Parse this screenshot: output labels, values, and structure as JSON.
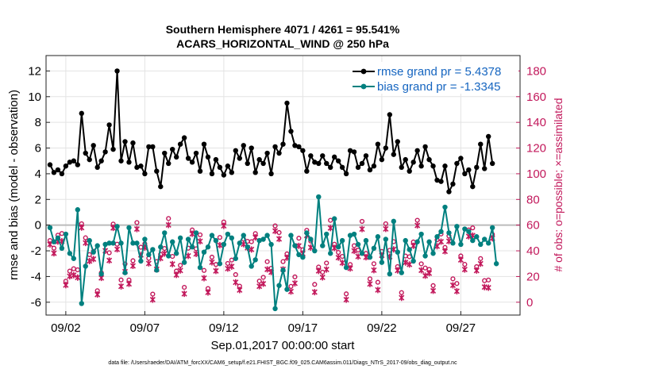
{
  "chart_data": {
    "type": "line",
    "title_line1": "Southern Hemisphere 4071 / 4261 = 95.541%",
    "title_line2": "ACARS_HORIZONTAL_WIND @ 250 hPa",
    "xlabel": "Sep.01,2017 00:00:00 start",
    "ylabel_left": "rmse and bias (model - observation)",
    "ylabel_right": "# of obs: o=possible; ×=assimilated",
    "footer": "data file: /Users/raeder/DAI/ATM_forcXX/CAM6_setup/f.e21.FHIST_BGC.f09_025.CAM6assim.011/Diags_NTrS_2017-09/obs_diag_output.nc",
    "x_range": [
      0.75,
      30.75
    ],
    "y_left_range": [
      -7,
      13.2
    ],
    "y_right_range": [
      -10,
      192
    ],
    "x_ticks": [
      {
        "pos": 2,
        "label": "09/02"
      },
      {
        "pos": 7,
        "label": "09/07"
      },
      {
        "pos": 12,
        "label": "09/12"
      },
      {
        "pos": 17,
        "label": "09/17"
      },
      {
        "pos": 22,
        "label": "09/22"
      },
      {
        "pos": 27,
        "label": "09/27"
      }
    ],
    "y_left_ticks": [
      -6,
      -4,
      -2,
      0,
      2,
      4,
      6,
      8,
      10,
      12
    ],
    "y_right_ticks": [
      0,
      20,
      40,
      60,
      80,
      100,
      120,
      140,
      160,
      180
    ],
    "legend": [
      {
        "label": "rmse grand pr = 5.4378",
        "color": "#000000"
      },
      {
        "label": "bias grand pr = -1.3345",
        "color": "#00807f"
      }
    ],
    "colors": {
      "rmse": "#000000",
      "bias": "#00807f",
      "obs": "#c2185b",
      "zero_line": "#bbbbbb"
    },
    "x_start": 1,
    "x_step": 0.25,
    "rmse": [
      4.7,
      4.1,
      4.3,
      4.0,
      4.6,
      4.9,
      5.0,
      4.7,
      8.7,
      5.6,
      5.1,
      6.2,
      4.5,
      5.0,
      5.7,
      7.8,
      5.9,
      12.0,
      5.0,
      6.5,
      4.9,
      6.4,
      4.5,
      4.6,
      4.0,
      6.1,
      6.1,
      4.2,
      3.0,
      5.6,
      4.8,
      5.9,
      5.3,
      6.3,
      6.8,
      5.2,
      4.9,
      5.6,
      4.2,
      6.3,
      5.3,
      4.0,
      5.1,
      4.5,
      3.9,
      4.6,
      4.1,
      5.8,
      5.2,
      6.2,
      4.8,
      6.0,
      4.1,
      5.1,
      4.8,
      5.6,
      4.0,
      6.1,
      5.6,
      6.3,
      9.5,
      7.3,
      6.2,
      6.1,
      5.8,
      4.2,
      5.4,
      4.9,
      4.8,
      5.4,
      4.8,
      4.5,
      5.3,
      5.0,
      4.5,
      4.0,
      5.8,
      5.7,
      4.5,
      4.8,
      5.4,
      4.3,
      4.6,
      6.3,
      5.1,
      6.0,
      8.6,
      5.5,
      6.5,
      4.5,
      5.1,
      4.2,
      4.9,
      5.8,
      4.6,
      6.1,
      5.1,
      4.6,
      3.5,
      3.4,
      4.6,
      2.6,
      3.2,
      4.8,
      5.2,
      4.0,
      4.3,
      3.0,
      4.5,
      6.3,
      4.4,
      6.9,
      4.8
    ],
    "bias": [
      -0.2,
      -1.3,
      -1.0,
      -1.8,
      -0.7,
      -2.2,
      -2.6,
      1.2,
      -6.1,
      -3.2,
      -1.2,
      -2.1,
      -1.6,
      -3.8,
      -1.5,
      -1.4,
      -1.4,
      -0.1,
      -1.4,
      -3.7,
      -0.2,
      -1.4,
      -1.4,
      -2.8,
      -1.1,
      -2.3,
      -1.9,
      -3.5,
      -1.7,
      -0.6,
      -2.4,
      -1.3,
      -2.2,
      -1.0,
      -2.9,
      -1.1,
      -1.7,
      -0.6,
      -3.3,
      -2.1,
      -1.7,
      -0.8,
      -1.2,
      -3.0,
      -1.5,
      -0.7,
      -1.0,
      -2.6,
      -1.4,
      -0.8,
      -1.7,
      -3.2,
      -2.7,
      -1.2,
      -1.1,
      -0.8,
      -1.5,
      -6.5,
      -4.7,
      -3.5,
      -5.0,
      -0.8,
      -1.6,
      -2.3,
      -2.5,
      -0.6,
      -1.1,
      -2.0,
      2.2,
      -1.6,
      -0.7,
      -2.2,
      0.5,
      -1.7,
      -1.2,
      -3.3,
      -0.8,
      -0.7,
      -1.5,
      -2.2,
      -1.2,
      -2.5,
      -1.8,
      -0.9,
      -2.9,
      -1.1,
      -3.8,
      0.3,
      -2.1,
      -3.7,
      -1.2,
      -1.9,
      -2.8,
      -1.3,
      -0.7,
      -2.4,
      -1.3,
      -2.2,
      -0.9,
      -0.5,
      1.4,
      -0.6,
      -1.4,
      -0.1,
      -1.5,
      -0.3,
      -0.5,
      -1.2,
      -0.9,
      -1.5,
      -1.1,
      -1.4,
      -0.2,
      -3.0
    ]
  }
}
